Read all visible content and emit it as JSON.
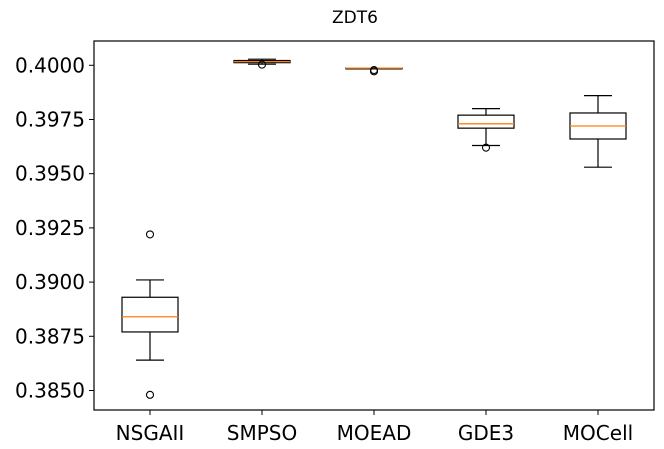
{
  "chart_data": {
    "type": "box",
    "title": "ZDT6",
    "xlabel": "",
    "ylabel": "",
    "categories": [
      "NSGAII",
      "SMPSO",
      "MOEAD",
      "GDE3",
      "MOCell"
    ],
    "ylim": [
      0.3841,
      0.40112
    ],
    "yticks": [
      0.385,
      0.3875,
      0.39,
      0.3925,
      0.395,
      0.3975,
      0.4
    ],
    "ytick_labels": [
      "0.3850",
      "0.3875",
      "0.3900",
      "0.3925",
      "0.3950",
      "0.3975",
      "0.4000"
    ],
    "grid": false,
    "colors": {
      "box": "#000000",
      "median": "#ff7f0e"
    },
    "boxes": [
      {
        "name": "NSGAII",
        "whisker_low": 0.3864,
        "q1": 0.3877,
        "median": 0.3884,
        "q3": 0.3893,
        "whisker_high": 0.3901,
        "outliers": [
          0.3848,
          0.3922
        ]
      },
      {
        "name": "SMPSO",
        "whisker_low": 0.40005,
        "q1": 0.40012,
        "median": 0.40017,
        "q3": 0.40022,
        "whisker_high": 0.40028,
        "outliers": [
          0.40003
        ]
      },
      {
        "name": "MOEAD",
        "whisker_low": 0.39987,
        "q1": 0.39987,
        "median": 0.39987,
        "q3": 0.39987,
        "whisker_high": 0.39987,
        "outliers": [
          0.39972,
          0.39978
        ]
      },
      {
        "name": "GDE3",
        "whisker_low": 0.3963,
        "q1": 0.3971,
        "median": 0.3973,
        "q3": 0.3977,
        "whisker_high": 0.398,
        "outliers": [
          0.3962
        ]
      },
      {
        "name": "MOCell",
        "whisker_low": 0.3953,
        "q1": 0.3966,
        "median": 0.3972,
        "q3": 0.3978,
        "whisker_high": 0.3986,
        "outliers": []
      }
    ]
  }
}
